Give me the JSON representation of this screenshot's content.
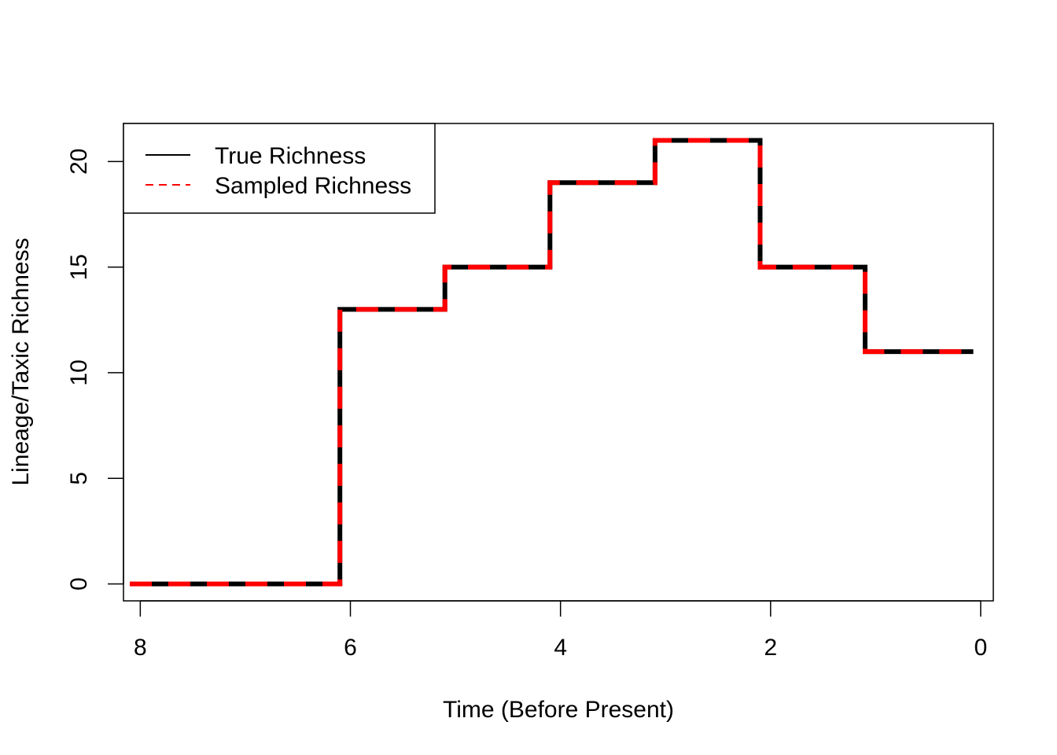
{
  "chart_data": {
    "type": "line",
    "title": "",
    "xlabel": "Time (Before Present)",
    "ylabel": "Lineage/Taxic Richness",
    "xlim": [
      8.16,
      -0.12
    ],
    "ylim": [
      -0.8,
      21.8
    ],
    "x_reversed": true,
    "x_ticks": [
      8,
      6,
      4,
      2,
      0
    ],
    "y_ticks": [
      0,
      5,
      10,
      15,
      20
    ],
    "grid": false,
    "legend": {
      "position": "top-left"
    },
    "series": [
      {
        "name": "True Richness",
        "color": "#000000",
        "style": "solid",
        "step": true,
        "x": [
          8.1,
          6.1,
          6.1,
          5.1,
          5.1,
          4.1,
          4.1,
          3.1,
          3.1,
          2.1,
          2.1,
          1.1,
          1.1,
          0.07
        ],
        "y": [
          0,
          0,
          13,
          13,
          15,
          15,
          19,
          19,
          21,
          21,
          15,
          15,
          11,
          11
        ]
      },
      {
        "name": "Sampled Richness",
        "color": "#ff0000",
        "style": "dashed",
        "step": true,
        "x": [
          8.1,
          6.1,
          6.1,
          5.1,
          5.1,
          4.1,
          4.1,
          3.1,
          3.1,
          2.1,
          2.1,
          1.1,
          1.1,
          0.07
        ],
        "y": [
          0,
          0,
          13,
          13,
          15,
          15,
          19,
          19,
          21,
          21,
          15,
          15,
          11,
          11
        ]
      }
    ]
  }
}
